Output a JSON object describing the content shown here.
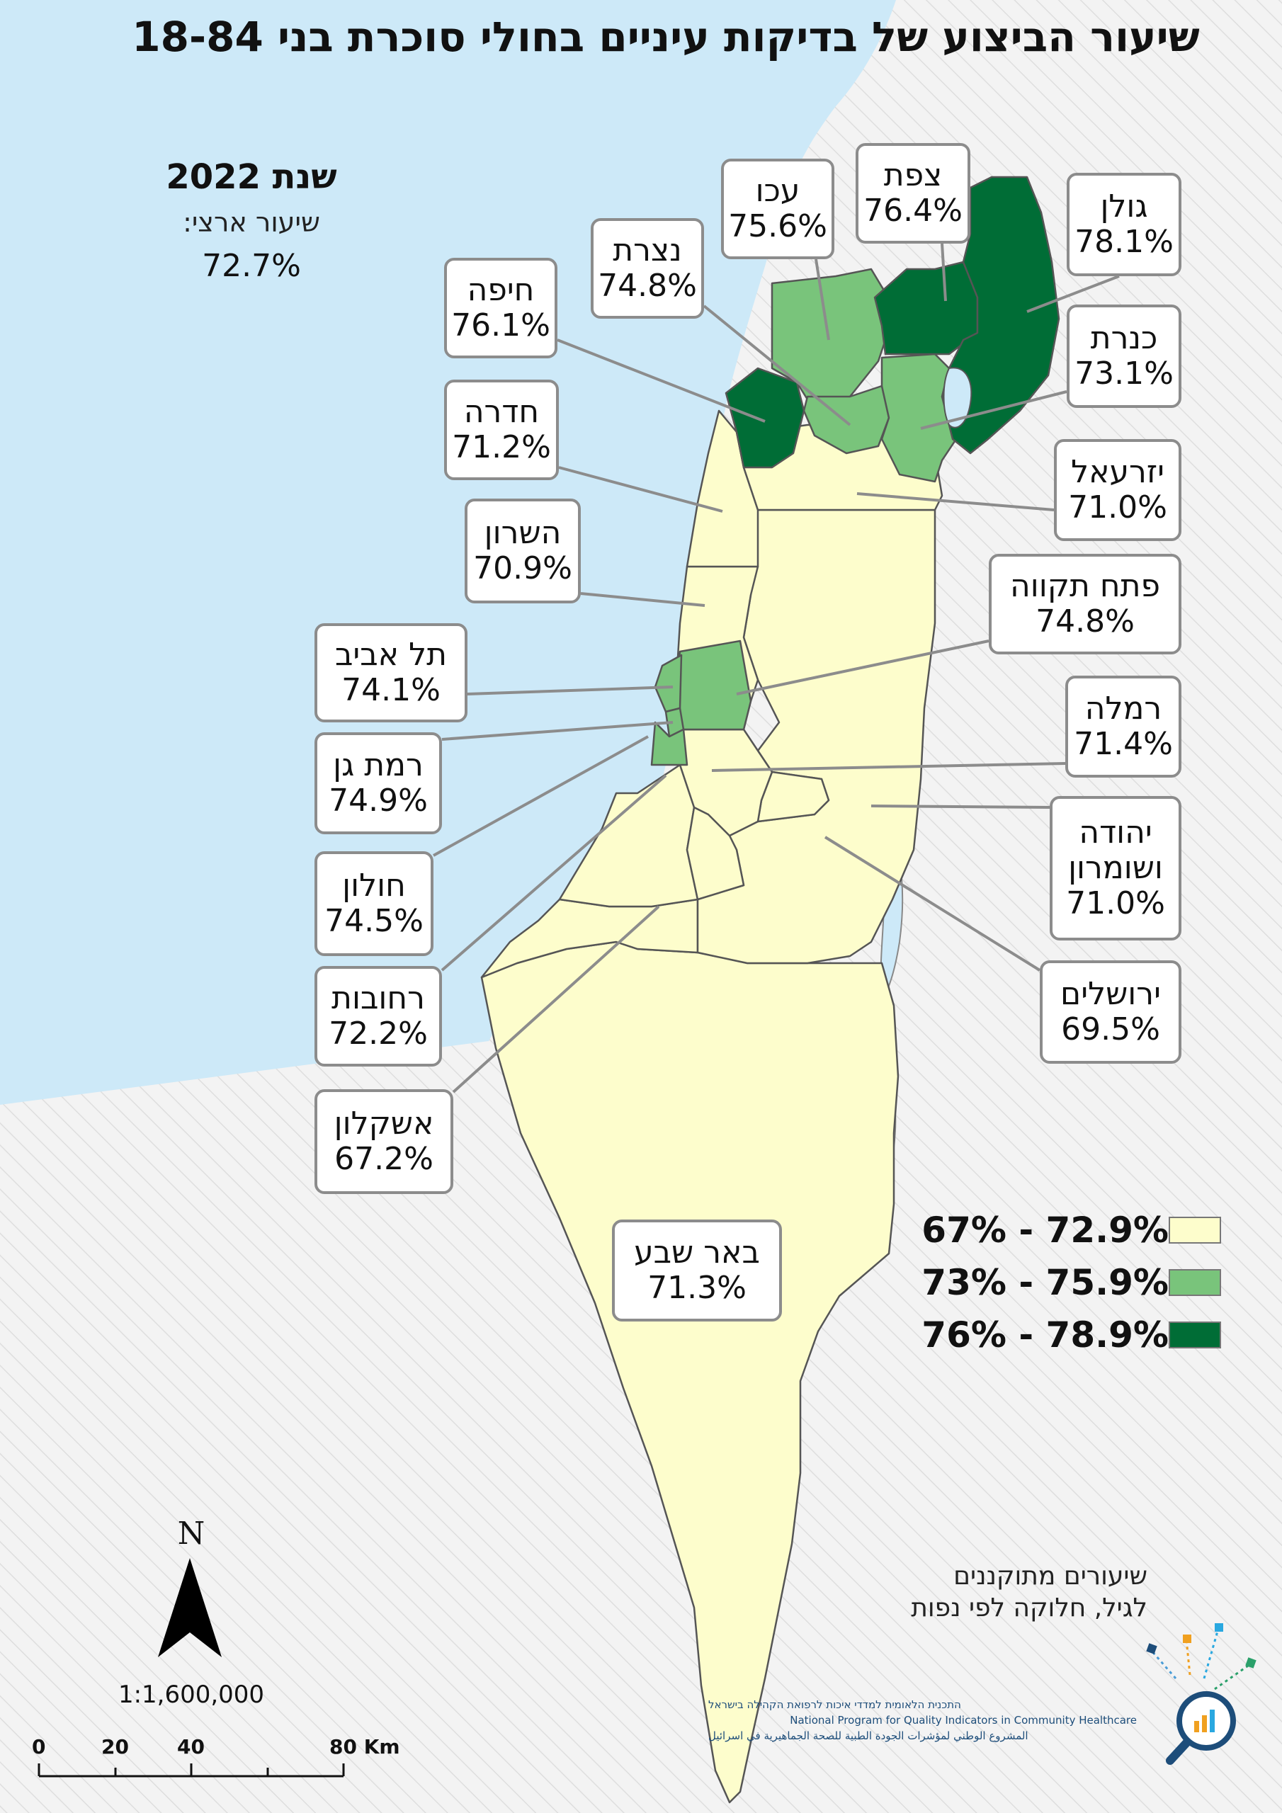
{
  "title": "שיעור הביצוע של בדיקות עיניים בחולי סוכרת בני 18-84",
  "year_label": "שנת 2022",
  "national_label": "שיעור ארצי:",
  "national_value": "72.7%",
  "regions": [
    {
      "name": "עכו",
      "value": "75.6%",
      "category": "mid"
    },
    {
      "name": "צפת",
      "value": "76.4%",
      "category": "high"
    },
    {
      "name": "גולן",
      "value": "78.1%",
      "category": "high"
    },
    {
      "name": "נצרת",
      "value": "74.8%",
      "category": "mid"
    },
    {
      "name": "חיפה",
      "value": "76.1%",
      "category": "high"
    },
    {
      "name": "כנרת",
      "value": "73.1%",
      "category": "mid"
    },
    {
      "name": "חדרה",
      "value": "71.2%",
      "category": "low"
    },
    {
      "name": "יזרעאל",
      "value": "71.0%",
      "category": "low"
    },
    {
      "name": "השרון",
      "value": "70.9%",
      "category": "low"
    },
    {
      "name": "פתח תקווה",
      "value": "74.8%",
      "category": "mid"
    },
    {
      "name": "תל אביב",
      "value": "74.1%",
      "category": "mid"
    },
    {
      "name": "רמלה",
      "value": "71.4%",
      "category": "low"
    },
    {
      "name": "רמת גן",
      "value": "74.9%",
      "category": "mid"
    },
    {
      "name": "יהודה ושומרון",
      "value": "71.0%",
      "category": "low"
    },
    {
      "name": "חולון",
      "value": "74.5%",
      "category": "mid"
    },
    {
      "name": "ירושלים",
      "value": "69.5%",
      "category": "low"
    },
    {
      "name": "רחובות",
      "value": "72.2%",
      "category": "low"
    },
    {
      "name": "אשקלון",
      "value": "67.2%",
      "category": "low"
    },
    {
      "name": "באר שבע",
      "value": "71.3%",
      "category": "low"
    }
  ],
  "legend": [
    {
      "label": "67% - 72.9%",
      "color": "#fdfdcc"
    },
    {
      "label": "73% - 75.9%",
      "color": "#79c47b"
    },
    {
      "label": "76% - 78.9%",
      "color": "#006d36"
    }
  ],
  "note_line1": "שיעורים מתוקננים",
  "note_line2": "לגיל, חלוקה לפי נפות",
  "north_label": "N",
  "scale_label": "1:1,600,000",
  "scale_ticks": [
    "0",
    "20",
    "40",
    "80 Km"
  ],
  "org_line1": "התכנית הלאומית למדדי איכות לרפואת הקהילה בישראל",
  "org_line2": "National Program for Quality Indicators in Community Healthcare",
  "org_line3": "المشروع الوطني لمؤشرات الجودة الطبية للصحة الجماهيرية في اسرائيل",
  "colors": {
    "sea": "#cde9f8",
    "land": "#f2f2f2",
    "border": "#555555",
    "leader": "#8c8c8c",
    "logo_blue": "#1d4d7a"
  }
}
